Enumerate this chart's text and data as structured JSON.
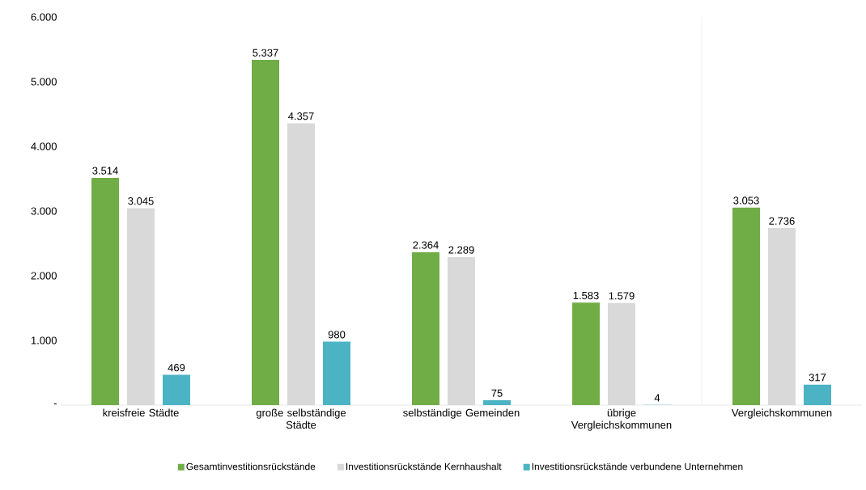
{
  "chart_data": {
    "type": "bar",
    "categories": [
      "kreisfreie Städte",
      "große selbständige Städte",
      "selbständige Gemeinden",
      "übrige Vergleichskommunen",
      "Vergleichskommunen"
    ],
    "series": [
      {
        "name": "Gesamtinvestitionsrückstände",
        "color": "#70ad47",
        "values": [
          3514,
          5337,
          2364,
          1583,
          3053
        ],
        "value_labels": [
          "3.514",
          "5.337",
          "2.364",
          "1.583",
          "3.053"
        ]
      },
      {
        "name": "Investitionsrückstände Kernhaushalt",
        "color": "#d9d9d9",
        "values": [
          3045,
          4357,
          2289,
          1579,
          2736
        ],
        "value_labels": [
          "3.045",
          "4.357",
          "2.289",
          "1.579",
          "2.736"
        ]
      },
      {
        "name": "Investitionsrückstände verbundene Unternehmen",
        "color": "#4bb3c4",
        "values": [
          469,
          980,
          75,
          4,
          317
        ],
        "value_labels": [
          "469",
          "980",
          "75",
          "4",
          "317"
        ]
      }
    ],
    "ylim": [
      0,
      6000
    ],
    "yticks": [
      {
        "value": 0,
        "label": "-"
      },
      {
        "value": 1000,
        "label": "1.000"
      },
      {
        "value": 2000,
        "label": "2.000"
      },
      {
        "value": 3000,
        "label": "3.000"
      },
      {
        "value": 4000,
        "label": "4.000"
      },
      {
        "value": 5000,
        "label": "5.000"
      },
      {
        "value": 6000,
        "label": "6.000"
      }
    ],
    "legend": "bottom",
    "grid": false
  }
}
